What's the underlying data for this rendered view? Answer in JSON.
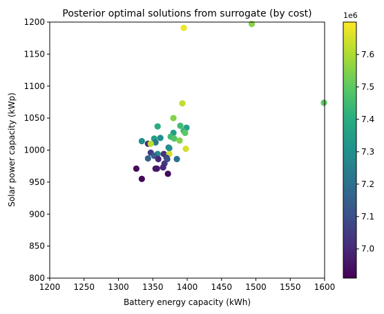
{
  "chart_data": {
    "type": "scatter",
    "title": "Posterior optimal solutions from surrogate (by cost)",
    "xlabel": "Battery energy capacity (kWh)",
    "ylabel": "Solar power capacity (kWp)",
    "xlim": [
      1200,
      1600
    ],
    "ylim": [
      800,
      1200
    ],
    "xticks": [
      "1200",
      "1250",
      "1300",
      "1350",
      "1400",
      "1450",
      "1500",
      "1550",
      "1600"
    ],
    "yticks": [
      "800",
      "850",
      "900",
      "950",
      "1000",
      "1050",
      "1100",
      "1150",
      "1200"
    ],
    "grid": false,
    "colormap": "viridis",
    "colorbar": {
      "label": "",
      "multiplier": "1e6",
      "range": [
        6.91,
        7.7
      ],
      "ticks": [
        "7.0",
        "7.1",
        "7.2",
        "7.3",
        "7.4",
        "7.5",
        "7.6"
      ]
    },
    "points": [
      {
        "x": 1395,
        "y": 1191,
        "c": 7.68
      },
      {
        "x": 1494,
        "y": 1197,
        "c": 7.55
      },
      {
        "x": 1599,
        "y": 1074,
        "c": 7.5
      },
      {
        "x": 1393,
        "y": 1073,
        "c": 7.62
      },
      {
        "x": 1380,
        "y": 1050,
        "c": 7.55
      },
      {
        "x": 1357,
        "y": 1037,
        "c": 7.4
      },
      {
        "x": 1390,
        "y": 1038,
        "c": 7.45
      },
      {
        "x": 1399,
        "y": 1035,
        "c": 7.35
      },
      {
        "x": 1395,
        "y": 1030,
        "c": 7.43
      },
      {
        "x": 1380,
        "y": 1027,
        "c": 7.35
      },
      {
        "x": 1397,
        "y": 1027,
        "c": 7.5
      },
      {
        "x": 1376,
        "y": 1021,
        "c": 7.45
      },
      {
        "x": 1381,
        "y": 1018,
        "c": 7.48
      },
      {
        "x": 1389,
        "y": 1015,
        "c": 7.55
      },
      {
        "x": 1361,
        "y": 1019,
        "c": 7.3
      },
      {
        "x": 1352,
        "y": 1018,
        "c": 7.35
      },
      {
        "x": 1334,
        "y": 1014,
        "c": 7.3
      },
      {
        "x": 1354,
        "y": 1012,
        "c": 7.22
      },
      {
        "x": 1343,
        "y": 1010,
        "c": 7.0
      },
      {
        "x": 1347,
        "y": 1010,
        "c": 7.62
      },
      {
        "x": 1373,
        "y": 1004,
        "c": 7.25
      },
      {
        "x": 1374,
        "y": 1003,
        "c": 7.3
      },
      {
        "x": 1398,
        "y": 1002,
        "c": 7.65
      },
      {
        "x": 1347,
        "y": 996,
        "c": 7.05
      },
      {
        "x": 1357,
        "y": 994,
        "c": 7.3
      },
      {
        "x": 1366,
        "y": 994,
        "c": 7.02
      },
      {
        "x": 1374,
        "y": 994,
        "c": 7.65
      },
      {
        "x": 1352,
        "y": 991,
        "c": 7.15
      },
      {
        "x": 1370,
        "y": 988,
        "c": 7.05
      },
      {
        "x": 1343,
        "y": 987,
        "c": 7.15
      },
      {
        "x": 1358,
        "y": 986,
        "c": 7.0
      },
      {
        "x": 1371,
        "y": 986,
        "c": 7.1
      },
      {
        "x": 1385,
        "y": 986,
        "c": 7.2
      },
      {
        "x": 1367,
        "y": 979,
        "c": 7.05
      },
      {
        "x": 1365,
        "y": 973,
        "c": 7.0
      },
      {
        "x": 1326,
        "y": 971,
        "c": 6.93
      },
      {
        "x": 1354,
        "y": 971,
        "c": 6.94
      },
      {
        "x": 1356,
        "y": 971,
        "c": 6.96
      },
      {
        "x": 1372,
        "y": 963,
        "c": 6.93
      },
      {
        "x": 1334,
        "y": 955,
        "c": 6.92
      }
    ]
  }
}
